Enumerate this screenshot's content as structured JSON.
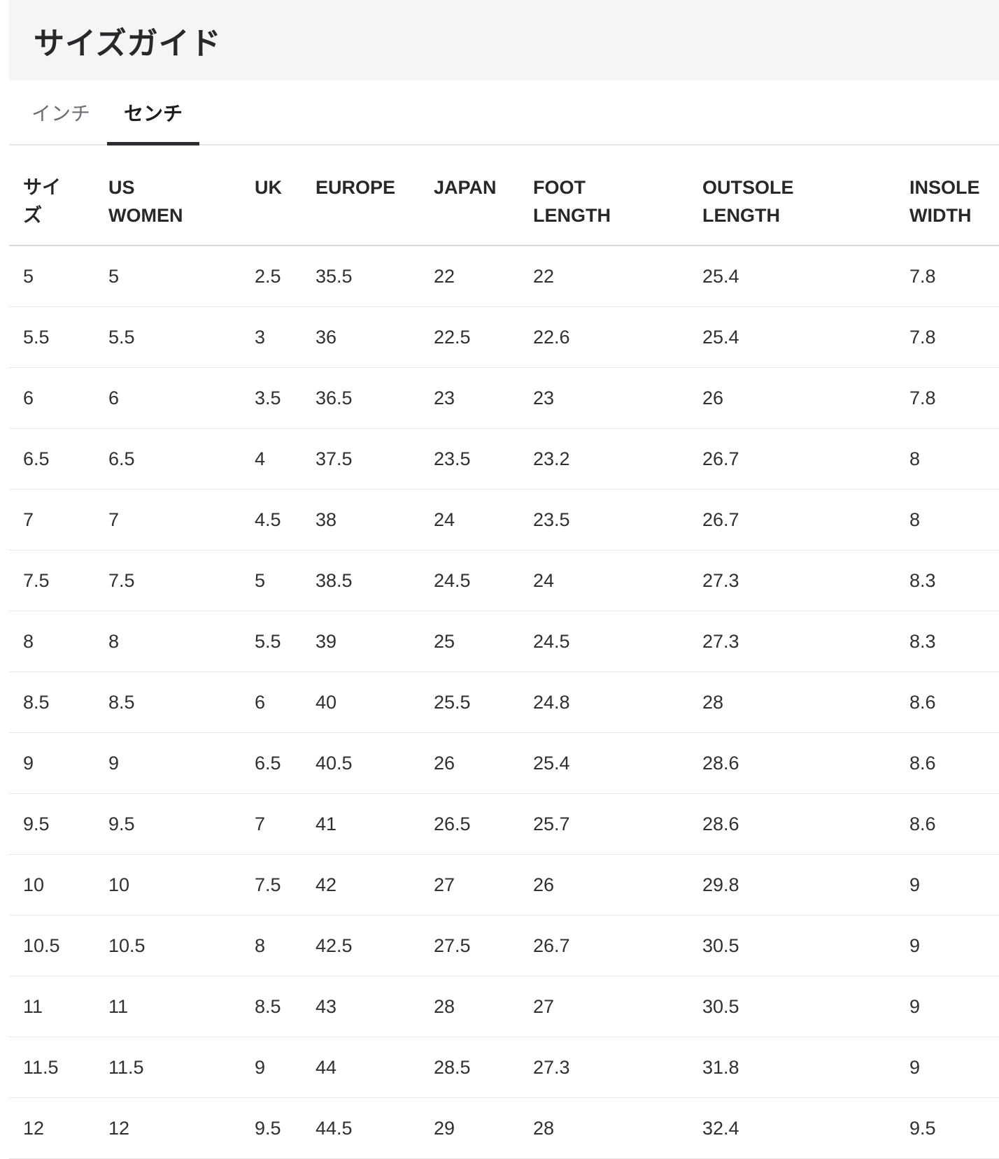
{
  "title": "サイズガイド",
  "tabs": [
    {
      "label": "インチ",
      "active": false
    },
    {
      "label": "センチ",
      "active": true
    }
  ],
  "table": {
    "columns": [
      "サイズ",
      "US WOMEN",
      "UK",
      "EUROPE",
      "JAPAN",
      "FOOT LENGTH",
      "OUTSOLE LENGTH",
      "INSOLE WIDTH"
    ],
    "rows": [
      [
        "5",
        "5",
        "2.5",
        "35.5",
        "22",
        "22",
        "25.4",
        "7.8"
      ],
      [
        "5.5",
        "5.5",
        "3",
        "36",
        "22.5",
        "22.6",
        "25.4",
        "7.8"
      ],
      [
        "6",
        "6",
        "3.5",
        "36.5",
        "23",
        "23",
        "26",
        "7.8"
      ],
      [
        "6.5",
        "6.5",
        "4",
        "37.5",
        "23.5",
        "23.2",
        "26.7",
        "8"
      ],
      [
        "7",
        "7",
        "4.5",
        "38",
        "24",
        "23.5",
        "26.7",
        "8"
      ],
      [
        "7.5",
        "7.5",
        "5",
        "38.5",
        "24.5",
        "24",
        "27.3",
        "8.3"
      ],
      [
        "8",
        "8",
        "5.5",
        "39",
        "25",
        "24.5",
        "27.3",
        "8.3"
      ],
      [
        "8.5",
        "8.5",
        "6",
        "40",
        "25.5",
        "24.8",
        "28",
        "8.6"
      ],
      [
        "9",
        "9",
        "6.5",
        "40.5",
        "26",
        "25.4",
        "28.6",
        "8.6"
      ],
      [
        "9.5",
        "9.5",
        "7",
        "41",
        "26.5",
        "25.7",
        "28.6",
        "8.6"
      ],
      [
        "10",
        "10",
        "7.5",
        "42",
        "27",
        "26",
        "29.8",
        "9"
      ],
      [
        "10.5",
        "10.5",
        "8",
        "42.5",
        "27.5",
        "26.7",
        "30.5",
        "9"
      ],
      [
        "11",
        "11",
        "8.5",
        "43",
        "28",
        "27",
        "30.5",
        "9"
      ],
      [
        "11.5",
        "11.5",
        "9",
        "44",
        "28.5",
        "27.3",
        "31.8",
        "9"
      ],
      [
        "12",
        "12",
        "9.5",
        "44.5",
        "29",
        "28",
        "32.4",
        "9.5"
      ]
    ]
  },
  "colors": {
    "title_band_bg": "#f5f5f5",
    "active_tab_underline": "#2b2d30",
    "tab_divider": "#e7e7e7",
    "header_divider": "#d9d9d9",
    "row_divider": "#e6e6e6",
    "text_dark": "#26282b",
    "text_muted": "#6b6e72"
  }
}
